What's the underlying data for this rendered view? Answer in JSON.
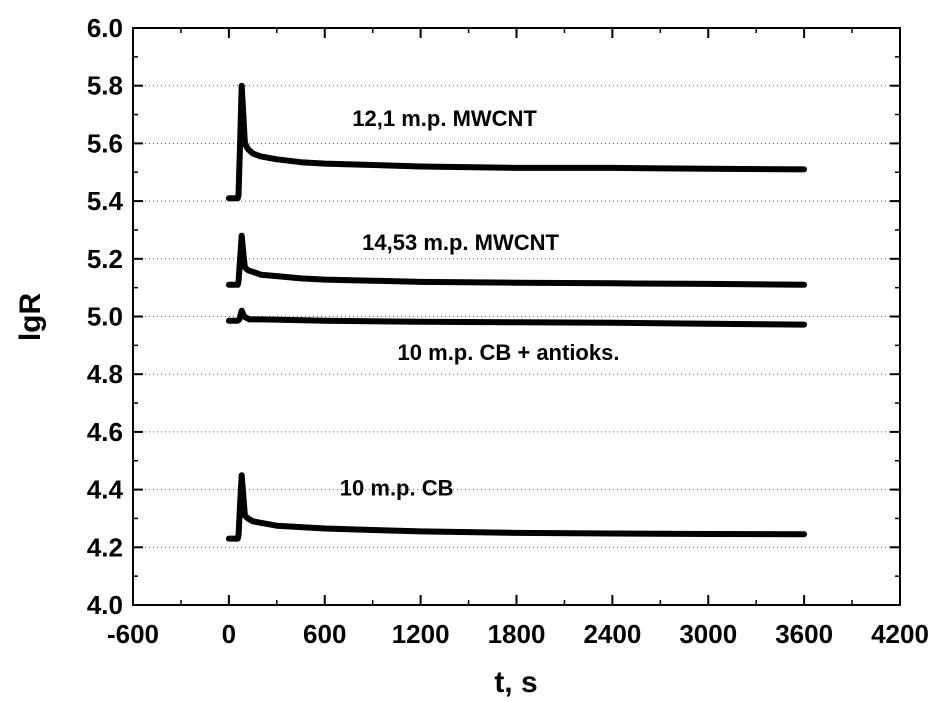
{
  "chart_data": {
    "type": "line",
    "xlabel": "t, s",
    "ylabel": "lgR",
    "xlim": [
      -600,
      4200
    ],
    "ylim": [
      4.0,
      6.0
    ],
    "xticks": [
      "-600",
      "0",
      "600",
      "1200",
      "1800",
      "2400",
      "3000",
      "3600",
      "4200"
    ],
    "yticks": [
      "4.0",
      "4.2",
      "4.4",
      "4.6",
      "4.8",
      "5.0",
      "5.2",
      "5.4",
      "5.6",
      "5.8",
      "6.0"
    ],
    "grid": "horizontal dotted",
    "series": [
      {
        "name": "12,1 m.p. MWCNT",
        "x": [
          0,
          55,
          60,
          70,
          80,
          90,
          100,
          120,
          150,
          200,
          300,
          450,
          600,
          900,
          1200,
          1800,
          2400,
          3000,
          3600
        ],
        "y": [
          5.41,
          5.41,
          5.42,
          5.6,
          5.8,
          5.7,
          5.6,
          5.58,
          5.565,
          5.555,
          5.545,
          5.535,
          5.53,
          5.525,
          5.52,
          5.515,
          5.515,
          5.512,
          5.51
        ]
      },
      {
        "name": "14,53 m.p. MWCNT",
        "x": [
          0,
          55,
          60,
          70,
          80,
          90,
          100,
          120,
          150,
          200,
          300,
          450,
          600,
          900,
          1200,
          1800,
          2400,
          3000,
          3600
        ],
        "y": [
          5.11,
          5.11,
          5.12,
          5.2,
          5.28,
          5.22,
          5.17,
          5.16,
          5.155,
          5.145,
          5.14,
          5.132,
          5.128,
          5.124,
          5.12,
          5.117,
          5.115,
          5.113,
          5.11
        ]
      },
      {
        "name": "10 m.p. CB + antioks.",
        "x": [
          0,
          55,
          65,
          80,
          95,
          110,
          130,
          200,
          400,
          600,
          1200,
          1800,
          2400,
          3000,
          3600
        ],
        "y": [
          4.985,
          4.985,
          4.99,
          5.02,
          5.0,
          4.995,
          4.99,
          4.99,
          4.988,
          4.985,
          4.982,
          4.98,
          4.978,
          4.975,
          4.972
        ]
      },
      {
        "name": "10 m.p. CB",
        "x": [
          0,
          55,
          60,
          70,
          80,
          90,
          100,
          120,
          150,
          200,
          300,
          450,
          600,
          900,
          1200,
          1800,
          2400,
          3000,
          3600
        ],
        "y": [
          4.23,
          4.23,
          4.24,
          4.35,
          4.45,
          4.38,
          4.31,
          4.3,
          4.29,
          4.285,
          4.275,
          4.27,
          4.265,
          4.26,
          4.255,
          4.25,
          4.248,
          4.246,
          4.245
        ]
      }
    ],
    "annotations": [
      {
        "text": "12,1 m.p. MWCNT",
        "x": 1350,
        "y": 5.66
      },
      {
        "text": "14,53 m.p. MWCNT",
        "x": 1450,
        "y": 5.23
      },
      {
        "text": "10 m.p. CB + antioks.",
        "x": 1750,
        "y": 4.85
      },
      {
        "text": "10 m.p. CB",
        "x": 1050,
        "y": 4.38
      }
    ]
  }
}
